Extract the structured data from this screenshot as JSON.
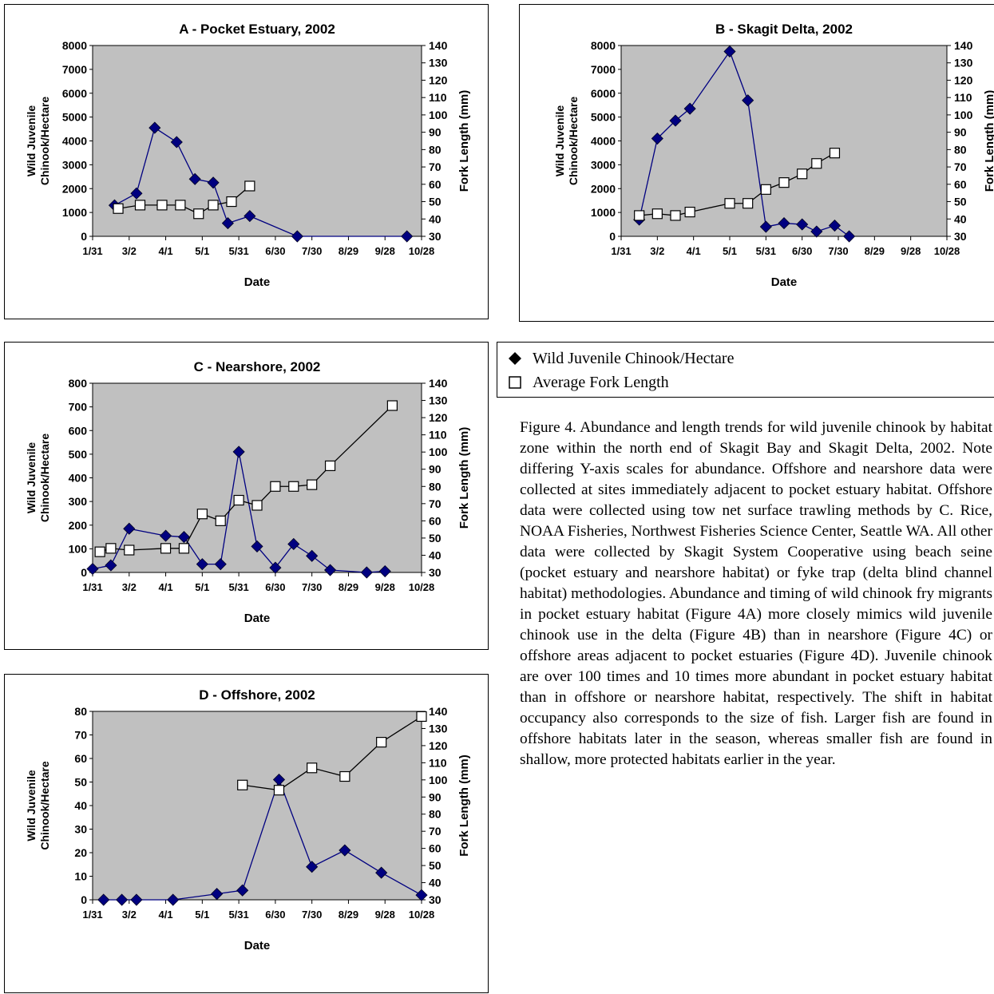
{
  "colors": {
    "plot_bg": "#c0c0c0",
    "abundance_line": "#000080",
    "abundance_marker": "#000080",
    "length_line": "#000000",
    "length_marker_fill": "#ffffff",
    "length_marker_stroke": "#000000"
  },
  "legend": {
    "abundance_label": "Wild Juvenile Chinook/Hectare",
    "length_label": "Average Fork Length",
    "abundance_icon": "filled-diamond-icon",
    "length_icon": "open-square-icon"
  },
  "caption": "Figure 4.   Abundance and length trends for wild juvenile chinook by habitat zone within the north end of Skagit Bay and Skagit Delta, 2002. Note differing Y-axis scales for abundance. Offshore and nearshore data were collected at sites immediately adjacent to pocket estuary habitat.  Offshore data were collected using tow net surface trawling methods by C. Rice, NOAA Fisheries, Northwest Fisheries Science Center, Seattle WA.  All other data were collected by Skagit System Cooperative using beach seine (pocket estuary and nearshore habitat) or fyke trap (delta blind channel habitat) methodologies.  Abundance and timing of wild chinook fry migrants in pocket estuary habitat (Figure 4A) more closely mimics wild juvenile chinook use in the delta (Figure 4B) than in nearshore (Figure 4C) or offshore areas adjacent to pocket estuaries (Figure 4D). Juvenile chinook are over 100 times and 10 times more abundant in pocket estuary habitat than in offshore or nearshore habitat, respectively.  The shift in habitat occupancy also corresponds to the size of fish.  Larger fish are found in offshore habitats later in the season, whereas smaller fish are found in shallow, more protected habitats earlier in the year.",
  "chart_data": [
    {
      "id": "A",
      "type": "line",
      "title": "A - Pocket Estuary, 2002",
      "xlabel": "Date",
      "ylabel_left": [
        "Wild Juvenile",
        "Chinook/Hectare"
      ],
      "ylabel_right": "Fork Length (mm)",
      "x_ticks": [
        "1/31",
        "3/2",
        "4/1",
        "5/1",
        "5/31",
        "6/30",
        "7/30",
        "8/29",
        "9/28",
        "10/28"
      ],
      "x_range": [
        0,
        9
      ],
      "y_left_ticks": [
        0,
        1000,
        2000,
        3000,
        4000,
        5000,
        6000,
        7000,
        8000
      ],
      "y_left_range": [
        0,
        8000
      ],
      "y_right_ticks": [
        30,
        40,
        50,
        60,
        70,
        80,
        90,
        100,
        110,
        120,
        130,
        140
      ],
      "y_right_range": [
        30,
        140
      ],
      "grid": false,
      "series": [
        {
          "name": "Wild Juvenile Chinook/Hectare",
          "axis": "left",
          "marker": "diamond",
          "x": [
            0.6,
            1.2,
            1.7,
            2.3,
            2.8,
            3.3,
            3.7,
            4.3,
            5.6,
            8.6
          ],
          "y": [
            1300,
            1800,
            4550,
            3950,
            2400,
            2250,
            550,
            850,
            0,
            0
          ]
        },
        {
          "name": "Average Fork Length",
          "axis": "right",
          "marker": "square",
          "x": [
            0.7,
            1.3,
            1.9,
            2.4,
            2.9,
            3.3,
            3.8,
            4.3
          ],
          "y": [
            46,
            48,
            48,
            48,
            43,
            48,
            50,
            59
          ]
        }
      ]
    },
    {
      "id": "B",
      "type": "line",
      "title": "B - Skagit Delta, 2002",
      "xlabel": "Date",
      "ylabel_left": [
        "Wild Juvenile",
        "Chinook/Hectare"
      ],
      "ylabel_right": "Fork Length (mm)",
      "x_ticks": [
        "1/31",
        "3/2",
        "4/1",
        "5/1",
        "5/31",
        "6/30",
        "7/30",
        "8/29",
        "9/28",
        "10/28"
      ],
      "x_range": [
        0,
        9
      ],
      "y_left_ticks": [
        0,
        1000,
        2000,
        3000,
        4000,
        5000,
        6000,
        7000,
        8000
      ],
      "y_left_range": [
        0,
        8000
      ],
      "y_right_ticks": [
        30,
        40,
        50,
        60,
        70,
        80,
        90,
        100,
        110,
        120,
        130,
        140
      ],
      "y_right_range": [
        30,
        140
      ],
      "grid": false,
      "series": [
        {
          "name": "Wild Juvenile Chinook/Hectare",
          "axis": "left",
          "marker": "diamond",
          "x": [
            0.5,
            1.0,
            1.5,
            1.9,
            3.0,
            3.5,
            4.0,
            4.5,
            5.0,
            5.4,
            5.9,
            6.3
          ],
          "y": [
            700,
            4100,
            4850,
            5350,
            7750,
            5700,
            400,
            550,
            500,
            200,
            450,
            0
          ]
        },
        {
          "name": "Average Fork Length",
          "axis": "right",
          "marker": "square",
          "x": [
            0.5,
            1.0,
            1.5,
            1.9,
            3.0,
            3.5,
            4.0,
            4.5,
            5.0,
            5.4,
            5.9
          ],
          "y": [
            42,
            43,
            42,
            44,
            49,
            49,
            57,
            61,
            66,
            72,
            78
          ]
        }
      ]
    },
    {
      "id": "C",
      "type": "line",
      "title": "C - Nearshore, 2002",
      "xlabel": "Date",
      "ylabel_left": [
        "Wild Juvenile",
        "Chinook/Hectare"
      ],
      "ylabel_right": "Fork Length (mm)",
      "x_ticks": [
        "1/31",
        "3/2",
        "4/1",
        "5/1",
        "5/31",
        "6/30",
        "7/30",
        "8/29",
        "9/28",
        "10/28"
      ],
      "x_range": [
        0,
        9
      ],
      "y_left_ticks": [
        0,
        100,
        200,
        300,
        400,
        500,
        600,
        700,
        800
      ],
      "y_left_range": [
        0,
        800
      ],
      "y_right_ticks": [
        30,
        40,
        50,
        60,
        70,
        80,
        90,
        100,
        110,
        120,
        130,
        140
      ],
      "y_right_range": [
        30,
        140
      ],
      "grid": false,
      "series": [
        {
          "name": "Wild Juvenile Chinook/Hectare",
          "axis": "left",
          "marker": "diamond",
          "x": [
            0.0,
            0.5,
            1.0,
            2.0,
            2.5,
            3.0,
            3.5,
            4.0,
            4.5,
            5.0,
            5.5,
            6.0,
            6.5,
            7.5,
            8.0
          ],
          "y": [
            15,
            30,
            185,
            155,
            150,
            35,
            35,
            510,
            110,
            20,
            120,
            70,
            10,
            0,
            5
          ]
        },
        {
          "name": "Average Fork Length",
          "axis": "right",
          "marker": "square",
          "x": [
            0.2,
            0.5,
            1.0,
            2.0,
            2.5,
            3.0,
            3.5,
            4.0,
            4.5,
            5.0,
            5.5,
            6.0,
            6.5,
            8.2
          ],
          "y": [
            42,
            44,
            43,
            44,
            44,
            64,
            60,
            72,
            69,
            80,
            80,
            81,
            92,
            127
          ]
        }
      ]
    },
    {
      "id": "D",
      "type": "line",
      "title": "D - Offshore, 2002",
      "xlabel": "Date",
      "ylabel_left": [
        "Wild Juvenile",
        "Chinook/Hectare"
      ],
      "ylabel_right": "Fork Length (mm)",
      "x_ticks": [
        "1/31",
        "3/2",
        "4/1",
        "5/1",
        "5/31",
        "6/30",
        "7/30",
        "8/29",
        "9/28",
        "10/28"
      ],
      "x_range": [
        0,
        9
      ],
      "y_left_ticks": [
        0,
        10,
        20,
        30,
        40,
        50,
        60,
        70,
        80
      ],
      "y_left_range": [
        0,
        80
      ],
      "y_right_ticks": [
        30,
        40,
        50,
        60,
        70,
        80,
        90,
        100,
        110,
        120,
        130,
        140
      ],
      "y_right_range": [
        30,
        140
      ],
      "grid": false,
      "series": [
        {
          "name": "Wild Juvenile Chinook/Hectare",
          "axis": "left",
          "marker": "diamond",
          "x": [
            0.3,
            0.8,
            1.2,
            2.2,
            3.4,
            4.1,
            5.1,
            6.0,
            6.9,
            7.9,
            9.0
          ],
          "y": [
            0,
            0,
            0,
            0,
            2.5,
            4,
            51,
            14,
            21,
            11.5,
            2
          ]
        },
        {
          "name": "Average Fork Length",
          "axis": "right",
          "marker": "square",
          "x": [
            4.1,
            5.1,
            6.0,
            6.9,
            7.9,
            9.0
          ],
          "y": [
            97,
            94,
            107,
            102,
            122,
            137
          ]
        }
      ]
    }
  ]
}
